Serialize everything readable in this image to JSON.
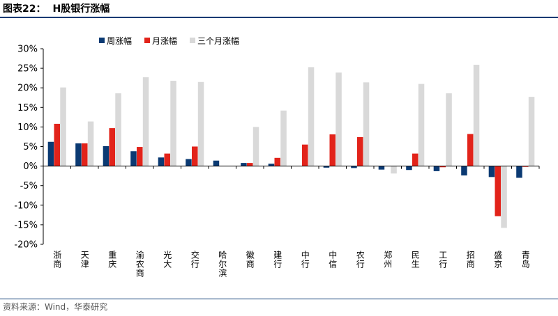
{
  "header": {
    "figure_label": "图表22：",
    "title": "H股银行涨幅"
  },
  "footer": {
    "source": "资料来源：Wind，华泰研究"
  },
  "colors": {
    "weekly": "#0b3a73",
    "monthly": "#e2231a",
    "three_month": "#d9d9d9",
    "rule": "#0b3a73"
  },
  "chart_data": {
    "type": "bar",
    "title": "H股银行涨幅",
    "xlabel": "",
    "ylabel": "",
    "ylim": [
      -20,
      30
    ],
    "ytick_step": 5,
    "ytick_labels": [
      "30%",
      "25%",
      "20%",
      "15%",
      "10%",
      "5%",
      "0%",
      "-5%",
      "-10%",
      "-15%",
      "-20%"
    ],
    "legend_position": "top-left",
    "categories": [
      "浙商",
      "天津",
      "重庆",
      "渝农商",
      "光大",
      "交行",
      "哈尔滨",
      "徽商",
      "建行",
      "中行",
      "中信",
      "农行",
      "郑州",
      "民生",
      "工行",
      "招商",
      "盛京",
      "青岛"
    ],
    "series": [
      {
        "name": "周涨幅",
        "color": "#0b3a73",
        "values": [
          6.2,
          5.8,
          5.1,
          3.8,
          2.2,
          1.8,
          1.4,
          0.8,
          0.6,
          0.0,
          -0.4,
          -0.5,
          -0.9,
          -1.0,
          -1.3,
          -2.4,
          -2.8,
          -3.0
        ]
      },
      {
        "name": "月涨幅",
        "color": "#e2231a",
        "values": [
          10.8,
          5.8,
          9.7,
          4.9,
          3.2,
          5.0,
          0.0,
          0.8,
          2.1,
          5.5,
          8.1,
          7.4,
          0.0,
          3.2,
          -0.3,
          8.2,
          -12.8,
          -0.2
        ]
      },
      {
        "name": "三个月涨幅",
        "color": "#d9d9d9",
        "values": [
          20.1,
          11.4,
          18.6,
          22.7,
          21.8,
          21.5,
          0.0,
          10.0,
          14.2,
          25.3,
          23.9,
          21.4,
          -1.9,
          21.0,
          18.6,
          25.9,
          -15.8,
          17.7
        ]
      }
    ]
  }
}
